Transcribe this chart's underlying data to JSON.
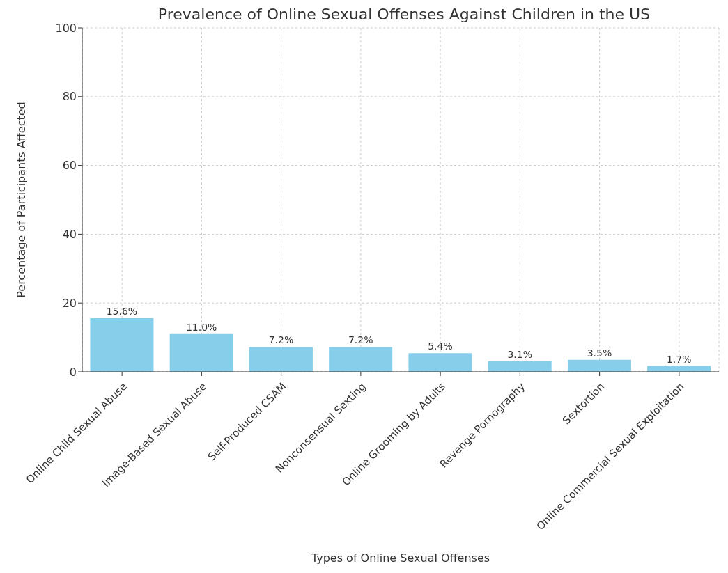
{
  "chart_data": {
    "type": "bar",
    "title": "Prevalence of Online Sexual Offenses Against Children in the US",
    "xlabel": "Types of Online Sexual Offenses",
    "ylabel": "Percentage of Participants Affected",
    "categories": [
      "Online Child Sexual Abuse",
      "Image-Based Sexual Abuse",
      "Self-Produced CSAM",
      "Nonconsensual Sexting",
      "Online Grooming by Adults",
      "Revenge Pornography",
      "Sextortion",
      "Online Commercial Sexual Exploitation"
    ],
    "values": [
      15.6,
      11.0,
      7.2,
      7.2,
      5.4,
      3.1,
      3.5,
      1.7
    ],
    "value_labels": [
      "15.6%",
      "11.0%",
      "7.2%",
      "7.2%",
      "5.4%",
      "3.1%",
      "3.5%",
      "1.7%"
    ],
    "color": "#87ceeb",
    "ylim": [
      0,
      100
    ],
    "yticks": [
      0,
      20,
      40,
      60,
      80,
      100
    ],
    "grid": true
  }
}
